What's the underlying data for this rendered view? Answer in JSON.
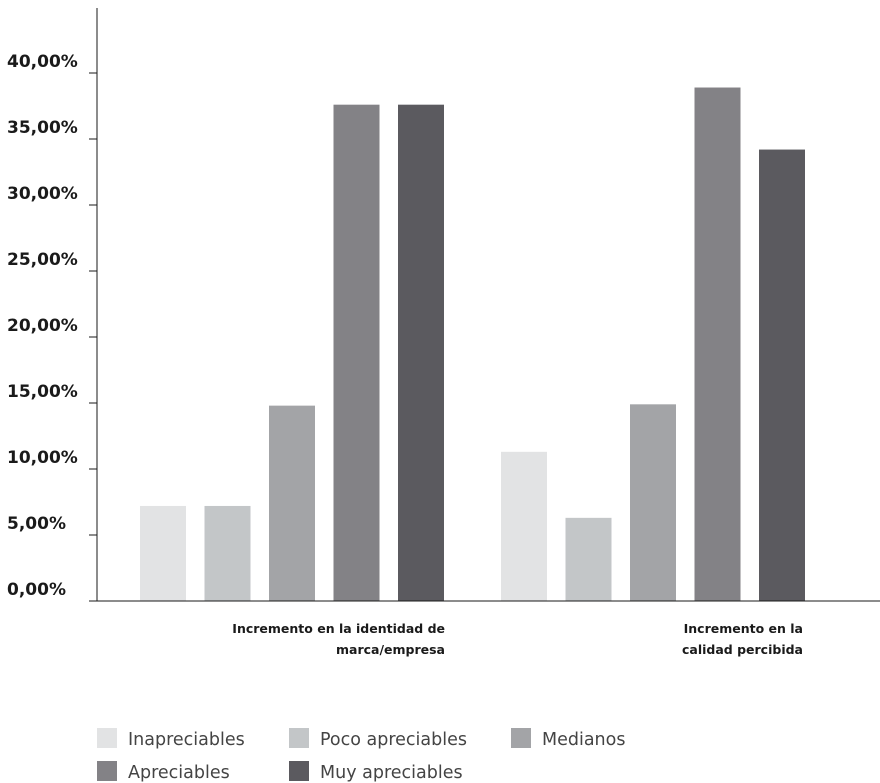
{
  "chart_data": {
    "type": "bar",
    "title": "",
    "xlabel": "",
    "ylabel": "",
    "ylim": [
      0,
      40
    ],
    "yticks": [
      0,
      5,
      10,
      15,
      20,
      25,
      30,
      35,
      40
    ],
    "ytick_labels": [
      "0,00%",
      "5,00%",
      "10,00%",
      "15,00%",
      "20,00%",
      "25,00%",
      "30,00%",
      "35,00%",
      "40,00%"
    ],
    "grid": false,
    "legend_position": "bottom-left",
    "categories": [
      {
        "lines": [
          "Incremento en la identidad de",
          "marca/empresa"
        ]
      },
      {
        "lines": [
          "Incremento en la",
          "calidad percibida"
        ]
      }
    ],
    "series": [
      {
        "name": "Inapreciables",
        "color": "#e2e3e4",
        "values": [
          7.2,
          11.3
        ]
      },
      {
        "name": "Poco apreciables",
        "color": "#c3c6c8",
        "values": [
          7.2,
          6.3
        ]
      },
      {
        "name": "Medianos",
        "color": "#a3a4a7",
        "values": [
          14.8,
          14.9
        ]
      },
      {
        "name": "Apreciables",
        "color": "#838286",
        "values": [
          37.6,
          38.9
        ]
      },
      {
        "name": "Muy apreciables",
        "color": "#5b5a5f",
        "values": [
          37.6,
          34.2
        ]
      }
    ]
  }
}
